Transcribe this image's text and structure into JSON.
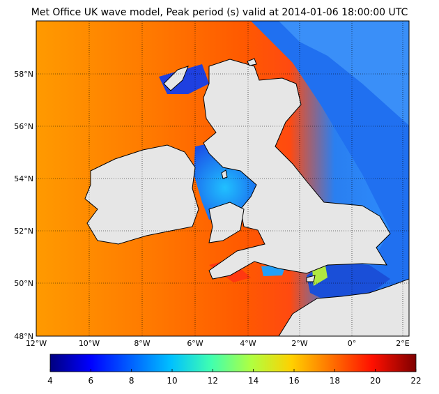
{
  "title": "Met Office UK wave model, Peak period (s) valid at 2014-01-06 18:00:00 UTC",
  "map": {
    "lat_labels": [
      "58°N",
      "56°N",
      "54°N",
      "52°N",
      "50°N",
      "48°N"
    ],
    "lon_labels": [
      "12°W",
      "10°W",
      "8°W",
      "6°W",
      "4°W",
      "2°W",
      "0°",
      "2°E"
    ],
    "field": "Peak period (s)",
    "colormap": "jet"
  },
  "colorbar": {
    "min": 4,
    "max": 22,
    "tick_labels": [
      "4",
      "6",
      "8",
      "10",
      "12",
      "14",
      "16",
      "18",
      "20",
      "22"
    ]
  },
  "colors": {
    "land": "#e6e6e6",
    "coast": "#000000",
    "gridline": "#000000"
  }
}
